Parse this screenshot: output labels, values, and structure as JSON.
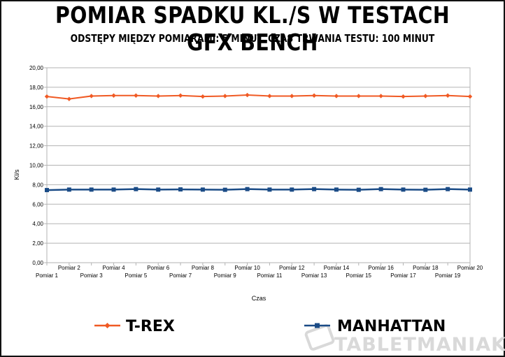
{
  "header": {
    "title": "Pomiar spadku kl./s w testach GFX Bench",
    "subtitle": "Odstępy między pomiarami: 5 minut. Czas trwania testu: 100 minut"
  },
  "watermark": "TABLETMANIAK",
  "chart_data": {
    "type": "line",
    "xlabel": "Czas",
    "ylabel": "Kl/s",
    "ylim": [
      0,
      20
    ],
    "yticks": [
      0,
      2,
      4,
      6,
      8,
      10,
      12,
      14,
      16,
      18,
      20
    ],
    "ytick_labels": [
      "0,00",
      "2,00",
      "4,00",
      "6,00",
      "8,00",
      "10,00",
      "12,00",
      "14,00",
      "16,00",
      "18,00",
      "20,00"
    ],
    "grid": true,
    "legend_position": "bottom",
    "categories": [
      "Pomiar 1",
      "Pomiar 2",
      "Pomiar 3",
      "Pomiar 4",
      "Pomiar 5",
      "Pomiar 6",
      "Pomiar 7",
      "Pomiar 8",
      "Pomiar 9",
      "Pomiar 10",
      "Pomiar 11",
      "Pomiar 12",
      "Pomiar 13",
      "Pomiar 14",
      "Pomiar 15",
      "Pomiar 16",
      "Pomiar 17",
      "Pomiar 18",
      "Pomiar 19",
      "Pomiar 20"
    ],
    "series": [
      {
        "name": "T-REX",
        "color": "#f05a24",
        "marker": "diamond",
        "values": [
          17.05,
          16.8,
          17.1,
          17.15,
          17.15,
          17.1,
          17.15,
          17.05,
          17.1,
          17.2,
          17.1,
          17.1,
          17.15,
          17.1,
          17.1,
          17.1,
          17.05,
          17.1,
          17.15,
          17.05
        ]
      },
      {
        "name": "MANHATTAN",
        "color": "#1a4b86",
        "marker": "square",
        "values": [
          7.45,
          7.5,
          7.5,
          7.5,
          7.55,
          7.5,
          7.52,
          7.5,
          7.48,
          7.55,
          7.5,
          7.5,
          7.55,
          7.5,
          7.48,
          7.55,
          7.5,
          7.48,
          7.55,
          7.5
        ]
      }
    ]
  }
}
